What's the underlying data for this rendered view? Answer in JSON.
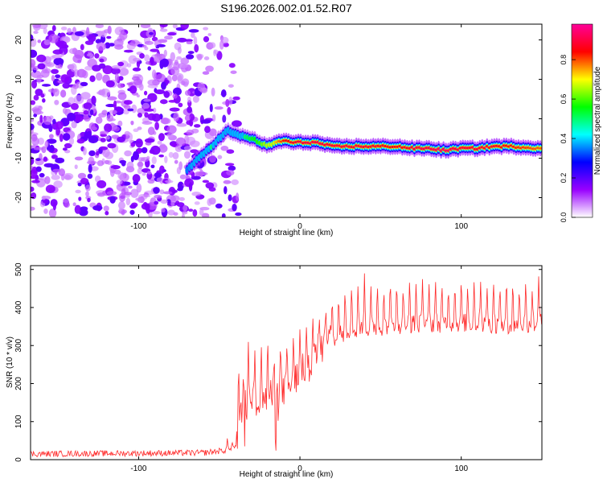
{
  "chart_data": [
    {
      "type": "heatmap",
      "title": "S196.2026.002.01.52.R07",
      "xlabel": "Height of straight line (km)",
      "ylabel": "Frequency (Hz)",
      "xlim": [
        -167,
        150
      ],
      "ylim": [
        -25,
        24
      ],
      "xticks": [
        -100,
        0,
        100
      ],
      "yticks": [
        -20,
        -10,
        0,
        10,
        20
      ],
      "colorbar": {
        "label": "Normalized spectral amplitude",
        "range": [
          0,
          0.98
        ],
        "ticks": [
          0,
          0.2,
          0.4,
          0.6,
          0.8
        ],
        "tick_labels": [
          "0.0",
          "0.2",
          "0.4",
          "0.6",
          "0.8"
        ],
        "colors": [
          "#ffffff",
          "#9900ff",
          "#0000ff",
          "#00ffff",
          "#00ff00",
          "#ffff00",
          "#ff0000",
          "#ff0099"
        ]
      },
      "noise_region_x": [
        -167,
        -50
      ],
      "ridge": {
        "x": [
          -70,
          -65,
          -60,
          -55,
          -50,
          -45,
          -40,
          -35,
          -30,
          -25,
          -20,
          -15,
          -10,
          -5,
          0,
          10,
          20,
          40,
          60,
          70,
          80,
          90,
          100,
          110,
          120,
          130,
          150
        ],
        "y": [
          -13,
          -11,
          -9,
          -7,
          -5,
          -3,
          -4,
          -4.5,
          -5,
          -6,
          -7,
          -6,
          -5.5,
          -6,
          -6,
          -6,
          -7,
          -7,
          -7,
          -7.5,
          -7.5,
          -8,
          -7.5,
          -7.5,
          -7,
          -7,
          -7.5
        ],
        "amplitude": [
          0.35,
          0.4,
          0.45,
          0.5,
          0.45,
          0.4,
          0.45,
          0.5,
          0.55,
          0.6,
          0.7,
          0.75,
          0.85,
          0.88,
          0.9,
          0.92,
          0.9,
          0.9,
          0.85,
          0.9,
          0.92,
          0.95,
          0.9,
          0.9,
          0.88,
          0.85,
          0.8
        ]
      }
    },
    {
      "type": "line",
      "title": "",
      "xlabel": "Height of straight line (km)",
      "ylabel": "SNR (10 * v/v)",
      "xlim": [
        -167,
        150
      ],
      "ylim": [
        0,
        510
      ],
      "xticks": [
        -100,
        0,
        100
      ],
      "yticks": [
        0,
        100,
        200,
        300,
        400,
        500
      ],
      "series": [
        {
          "name": "SNR",
          "color": "#ff2a2a",
          "baseline_x": [
            -167,
            -60,
            -45,
            -40,
            -35,
            -30,
            -20,
            -10,
            0,
            10,
            20,
            30,
            60,
            100,
            130,
            150
          ],
          "baseline_y": [
            15,
            18,
            25,
            30,
            140,
            150,
            160,
            185,
            225,
            280,
            320,
            340,
            355,
            360,
            355,
            360
          ],
          "spike_heights": [
            [
              -45,
              60
            ],
            [
              -42,
              50
            ],
            [
              -38,
              300
            ],
            [
              -35,
              240
            ],
            [
              -32,
              310
            ],
            [
              -28,
              300
            ],
            [
              -24,
              320
            ],
            [
              -20,
              350
            ],
            [
              -16,
              290
            ],
            [
              -12,
              330
            ],
            [
              -8,
              320
            ],
            [
              -4,
              340
            ],
            [
              0,
              355
            ],
            [
              4,
              350
            ],
            [
              8,
              380
            ],
            [
              12,
              395
            ],
            [
              16,
              420
            ],
            [
              20,
              440
            ],
            [
              24,
              460
            ],
            [
              28,
              470
            ],
            [
              32,
              480
            ],
            [
              36,
              475
            ],
            [
              40,
              490
            ],
            [
              44,
              470
            ],
            [
              48,
              485
            ],
            [
              52,
              470
            ],
            [
              56,
              495
            ],
            [
              60,
              480
            ],
            [
              64,
              475
            ],
            [
              68,
              490
            ],
            [
              72,
              480
            ],
            [
              76,
              495
            ],
            [
              80,
              470
            ],
            [
              84,
              490
            ],
            [
              88,
              480
            ],
            [
              92,
              470
            ],
            [
              96,
              485
            ],
            [
              100,
              495
            ],
            [
              104,
              475
            ],
            [
              108,
              490
            ],
            [
              112,
              480
            ],
            [
              116,
              470
            ],
            [
              120,
              495
            ],
            [
              124,
              480
            ],
            [
              128,
              500
            ],
            [
              132,
              490
            ],
            [
              136,
              470
            ],
            [
              140,
              485
            ],
            [
              144,
              460
            ],
            [
              148,
              500
            ]
          ]
        }
      ]
    }
  ]
}
